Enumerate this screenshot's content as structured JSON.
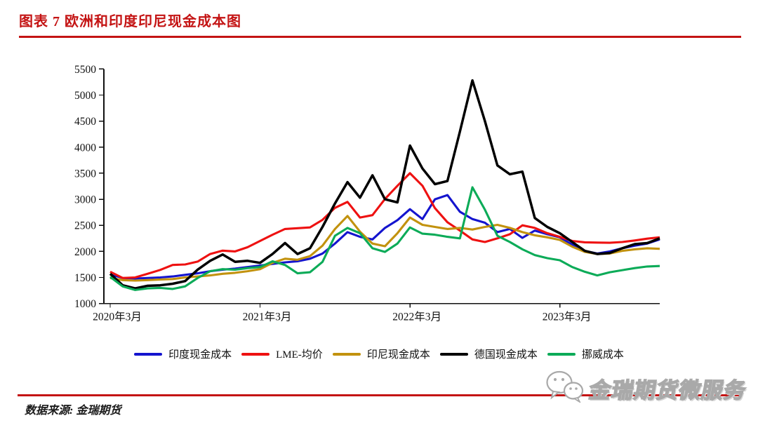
{
  "header": {
    "title": "图表 7 欧洲和印度印尼现金成本图",
    "accent_color": "#C41414"
  },
  "chart_data": {
    "type": "line",
    "title": "欧洲和印度印尼现金成本图",
    "xlabel": "",
    "ylabel": "",
    "ylim": [
      1000,
      5500
    ],
    "y_tick_step": 500,
    "grid": false,
    "legend_position": "bottom",
    "x_tick_labels": [
      "2020年3月",
      "2021年3月",
      "2022年3月",
      "2023年3月"
    ],
    "x_tick_indices": [
      0,
      12,
      24,
      36
    ],
    "months": [
      "2020-03",
      "2020-04",
      "2020-05",
      "2020-06",
      "2020-07",
      "2020-08",
      "2020-09",
      "2020-10",
      "2020-11",
      "2020-12",
      "2021-01",
      "2021-02",
      "2021-03",
      "2021-04",
      "2021-05",
      "2021-06",
      "2021-07",
      "2021-08",
      "2021-09",
      "2021-10",
      "2021-11",
      "2021-12",
      "2022-01",
      "2022-02",
      "2022-03",
      "2022-04",
      "2022-05",
      "2022-06",
      "2022-07",
      "2022-08",
      "2022-09",
      "2022-10",
      "2022-11",
      "2022-12",
      "2023-01",
      "2023-02",
      "2023-03",
      "2023-04",
      "2023-05",
      "2023-06",
      "2023-07",
      "2023-08",
      "2023-09",
      "2023-10",
      "2023-11"
    ],
    "series": [
      {
        "name": "印度现金成本",
        "color": "#1414CE",
        "values": [
          1560,
          1490,
          1480,
          1490,
          1500,
          1520,
          1550,
          1580,
          1620,
          1650,
          1670,
          1700,
          1730,
          1760,
          1790,
          1810,
          1860,
          1960,
          2150,
          2370,
          2280,
          2230,
          2450,
          2600,
          2810,
          2620,
          3000,
          3080,
          2760,
          2620,
          2550,
          2370,
          2430,
          2260,
          2400,
          2330,
          2270,
          2130,
          2010,
          1960,
          2000,
          2060,
          2110,
          2150,
          2230
        ]
      },
      {
        "name": "LME-均价",
        "color": "#EE1111",
        "values": [
          1610,
          1490,
          1500,
          1570,
          1645,
          1740,
          1750,
          1805,
          1950,
          2015,
          2000,
          2080,
          2200,
          2320,
          2430,
          2445,
          2460,
          2605,
          2835,
          2950,
          2650,
          2695,
          3005,
          3260,
          3500,
          3260,
          2830,
          2560,
          2400,
          2230,
          2180,
          2250,
          2330,
          2500,
          2450,
          2350,
          2280,
          2200,
          2175,
          2170,
          2165,
          2180,
          2210,
          2245,
          2270
        ]
      },
      {
        "name": "印尼现金成本",
        "color": "#C2920E",
        "values": [
          1490,
          1450,
          1440,
          1450,
          1460,
          1470,
          1500,
          1520,
          1540,
          1570,
          1590,
          1620,
          1660,
          1780,
          1860,
          1840,
          1910,
          2110,
          2430,
          2680,
          2380,
          2150,
          2100,
          2350,
          2650,
          2510,
          2470,
          2430,
          2450,
          2420,
          2470,
          2510,
          2450,
          2370,
          2310,
          2270,
          2220,
          2090,
          1990,
          1950,
          1960,
          2010,
          2040,
          2060,
          2050
        ]
      },
      {
        "name": "德国现金成本",
        "color": "#000000",
        "values": [
          1570,
          1350,
          1290,
          1340,
          1350,
          1380,
          1430,
          1650,
          1820,
          1940,
          1800,
          1820,
          1780,
          1950,
          2160,
          1950,
          2060,
          2470,
          2920,
          3330,
          3030,
          3460,
          3000,
          2940,
          4030,
          3590,
          3290,
          3350,
          4300,
          5280,
          4500,
          3650,
          3480,
          3530,
          2640,
          2470,
          2350,
          2180,
          2010,
          1950,
          1970,
          2060,
          2140,
          2160,
          2250
        ]
      },
      {
        "name": "挪威成本",
        "color": "#0CAB58",
        "values": [
          1510,
          1330,
          1260,
          1290,
          1300,
          1280,
          1330,
          1490,
          1620,
          1660,
          1650,
          1680,
          1700,
          1810,
          1740,
          1580,
          1600,
          1800,
          2300,
          2450,
          2350,
          2060,
          1990,
          2150,
          2460,
          2340,
          2320,
          2280,
          2250,
          3230,
          2800,
          2300,
          2180,
          2040,
          1930,
          1870,
          1830,
          1700,
          1610,
          1540,
          1600,
          1640,
          1680,
          1710,
          1720
        ]
      }
    ]
  },
  "footer": {
    "source": "数据来源: 金瑞期货",
    "watermark": "金瑞期货微服务",
    "watermark_color": "#A9A9A9",
    "wechat_icon": "wechat-icon"
  }
}
